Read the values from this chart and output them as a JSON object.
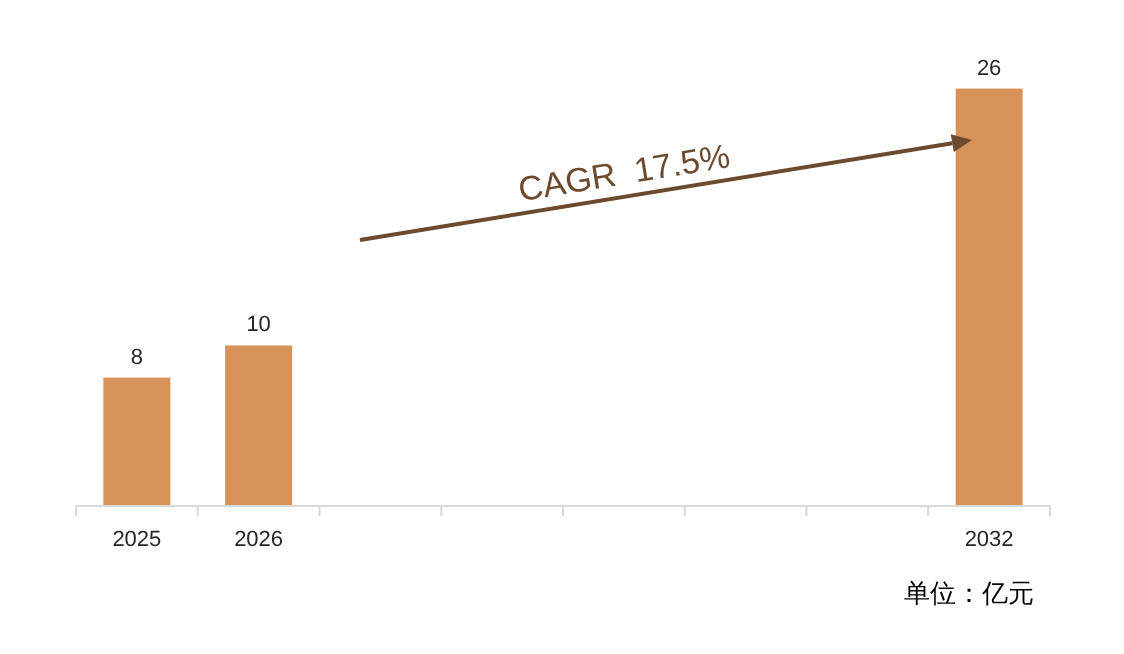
{
  "chart_data": {
    "type": "bar",
    "categories": [
      "2025",
      "2026",
      null,
      null,
      null,
      null,
      null,
      "2032"
    ],
    "values": [
      8,
      10,
      null,
      null,
      null,
      null,
      null,
      26
    ],
    "color": "#d7925a",
    "data_labels": true,
    "annotations": [
      "CAGR  17.5%",
      "单位：亿元"
    ]
  }
}
